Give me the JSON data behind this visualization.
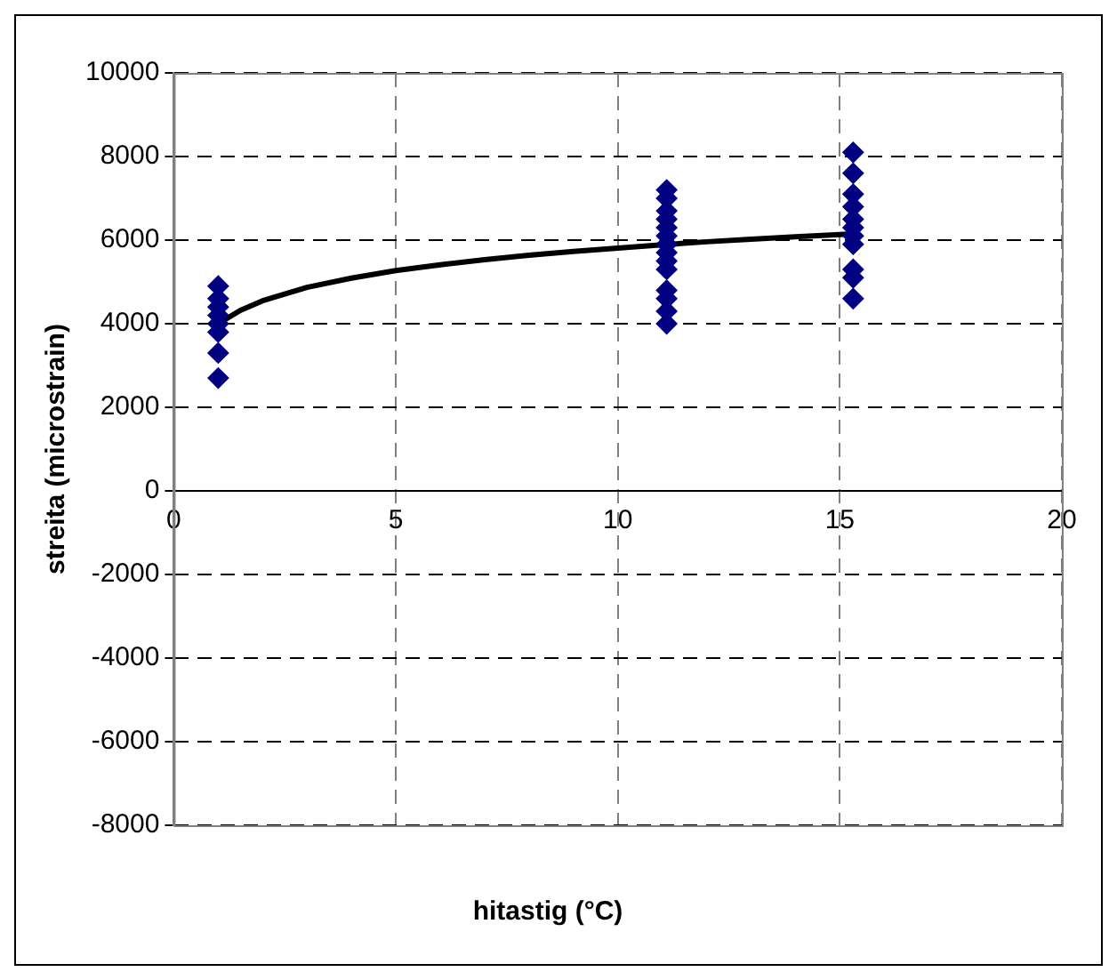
{
  "chart_data": {
    "type": "scatter",
    "xlabel": "hitastig (°C)",
    "ylabel": "streita (microstrain)",
    "xlim": [
      0,
      20
    ],
    "xticks": [
      0,
      5,
      10,
      15,
      20
    ],
    "ylim": [
      -8000,
      10000
    ],
    "yticks": [
      -8000,
      -6000,
      -4000,
      -2000,
      0,
      2000,
      4000,
      6000,
      8000,
      10000
    ],
    "grid": true,
    "legend": false,
    "series": [
      {
        "color": "#000080",
        "marker": "diamond",
        "x": [
          1,
          1,
          1,
          1,
          1,
          1,
          1,
          1
        ],
        "values": [
          4900,
          4600,
          4400,
          4200,
          4000,
          3800,
          3300,
          2700
        ]
      },
      {
        "color": "#000080",
        "marker": "diamond",
        "x": [
          11.1,
          11.1,
          11.1,
          11.1,
          11.1,
          11.1,
          11.1,
          11.1,
          11.1,
          11.1,
          11.1,
          11.1,
          11.1,
          11.1
        ],
        "values": [
          7200,
          7000,
          6700,
          6500,
          6300,
          6100,
          5900,
          5700,
          5500,
          5300,
          4800,
          4600,
          4300,
          4000
        ]
      },
      {
        "color": "#000080",
        "marker": "diamond",
        "x": [
          15.3,
          15.3,
          15.3,
          15.3,
          15.3,
          15.3,
          15.3,
          15.3,
          15.3,
          15.3,
          15.3
        ],
        "values": [
          8100,
          7600,
          7100,
          6800,
          6500,
          6300,
          6100,
          5900,
          5300,
          5100,
          4600
        ]
      },
      {
        "type": "line",
        "color": "#000000",
        "marker": "none",
        "line_style": "solid",
        "x": [
          1,
          1.5,
          2,
          3,
          4,
          5,
          6,
          7,
          8,
          9,
          10,
          11,
          12,
          13,
          14,
          15.3
        ],
        "values": [
          4000,
          4320,
          4550,
          4870,
          5090,
          5270,
          5410,
          5530,
          5640,
          5730,
          5810,
          5890,
          5960,
          6020,
          6080,
          6150
        ]
      }
    ]
  }
}
